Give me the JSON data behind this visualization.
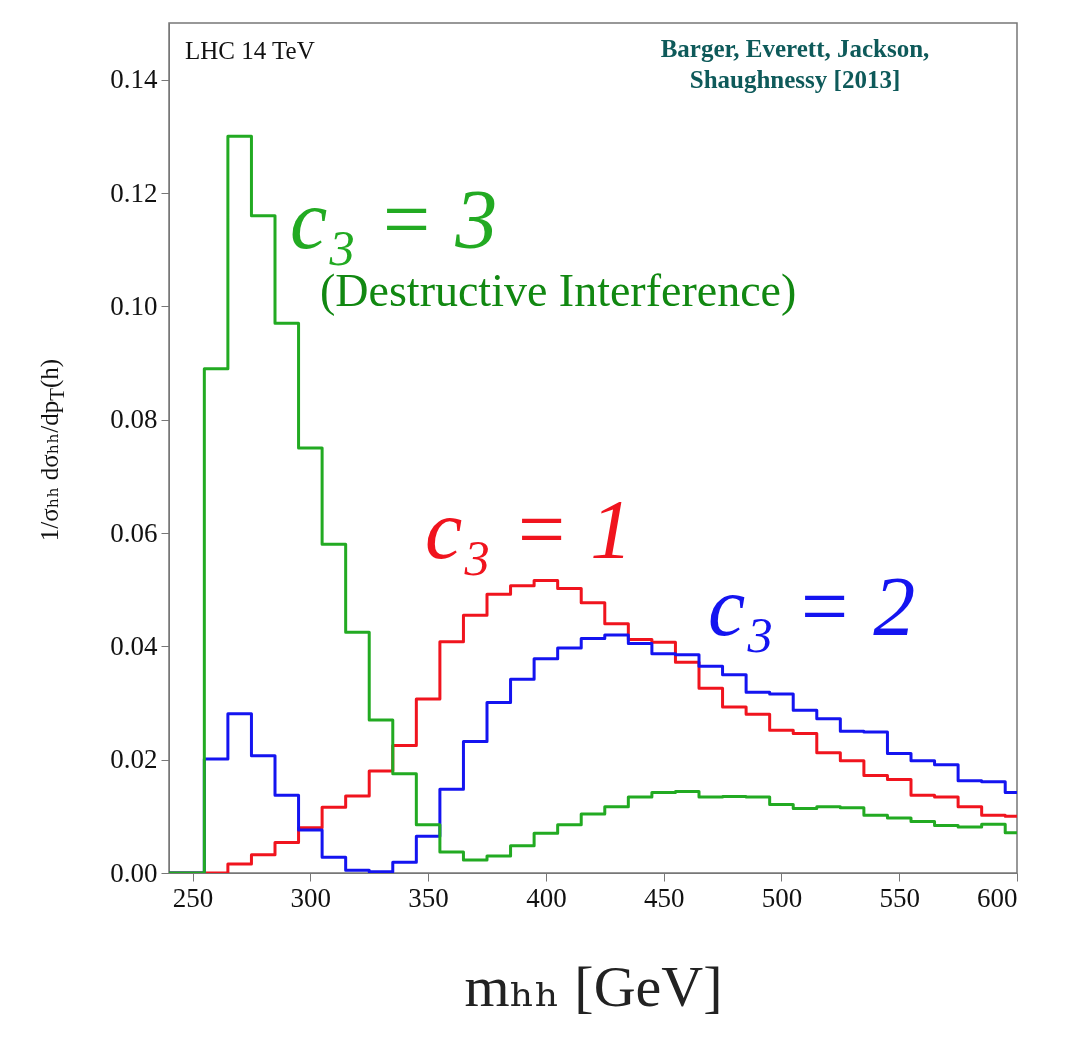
{
  "chart_data": {
    "type": "histogram",
    "xlabel": "mₕₕ [GeV]",
    "ylabel": "1/σₕₕ dσₕₕ/dp$_{T}$(h)",
    "annotations": [
      "LHC 14 TeV",
      "Barger, Everett, Jackson, Shaughnessy [2013]",
      "(Destructive Interference)"
    ],
    "bins": [
      240,
      255,
      265,
      275,
      285,
      295,
      305,
      315,
      325,
      335,
      345,
      355,
      365,
      375,
      385,
      395,
      405,
      415,
      425,
      435,
      445,
      455,
      465,
      475,
      485,
      495,
      505,
      515,
      525,
      535,
      545,
      555,
      565,
      575,
      585,
      595,
      600
    ],
    "series": [
      {
        "name": "c₃ = 1",
        "color": "#f0141e",
        "values": [
          0,
          0,
          0.0016,
          0.0032,
          0.0054,
          0.008,
          0.0116,
          0.0136,
          0.018,
          0.0225,
          0.0307,
          0.0408,
          0.0455,
          0.0492,
          0.0507,
          0.0516,
          0.0502,
          0.0477,
          0.044,
          0.0412,
          0.0407,
          0.0372,
          0.0326,
          0.0293,
          0.028,
          0.0252,
          0.0246,
          0.0212,
          0.0198,
          0.0172,
          0.0165,
          0.0137,
          0.0134,
          0.0117,
          0.0102,
          0.01
        ]
      },
      {
        "name": "c₃ = 2",
        "color": "#1414f0",
        "values": [
          0,
          0.0201,
          0.0281,
          0.0207,
          0.0137,
          0.0076,
          0.0028,
          0.0005,
          0.0002,
          0.0019,
          0.0065,
          0.0148,
          0.0232,
          0.0301,
          0.0342,
          0.0378,
          0.0397,
          0.0414,
          0.042,
          0.0405,
          0.0387,
          0.0385,
          0.0365,
          0.035,
          0.0319,
          0.0316,
          0.0287,
          0.0272,
          0.025,
          0.0249,
          0.0211,
          0.0198,
          0.0191,
          0.0163,
          0.0161,
          0.0142
        ]
      },
      {
        "name": "c₃ = 3",
        "color": "#22aa22",
        "values": [
          0,
          0.089,
          0.13,
          0.116,
          0.097,
          0.075,
          0.058,
          0.0425,
          0.027,
          0.0175,
          0.0085,
          0.0037,
          0.0023,
          0.003,
          0.0048,
          0.007,
          0.0085,
          0.0104,
          0.0117,
          0.0134,
          0.0142,
          0.0144,
          0.0134,
          0.0135,
          0.0134,
          0.0121,
          0.0114,
          0.0117,
          0.0115,
          0.0102,
          0.0097,
          0.0091,
          0.0084,
          0.0081,
          0.0086,
          0.0071
        ]
      }
    ],
    "xlim": [
      240,
      600
    ],
    "ylim": [
      0,
      0.15
    ],
    "xticks": [
      250,
      300,
      350,
      400,
      450,
      500,
      550,
      600
    ],
    "yticks": [
      {
        "value": 0,
        "label": "0.00"
      },
      {
        "value": 0.02,
        "label": "0.02"
      },
      {
        "value": 0.04,
        "label": "0.04"
      },
      {
        "value": 0.06,
        "label": "0.06"
      },
      {
        "value": 0.08,
        "label": "0.08"
      },
      {
        "value": 0.1,
        "label": "0.10"
      },
      {
        "value": 0.12,
        "label": "0.12"
      },
      {
        "value": 0.14,
        "label": "0.14"
      }
    ],
    "grid": false,
    "legend": false
  }
}
